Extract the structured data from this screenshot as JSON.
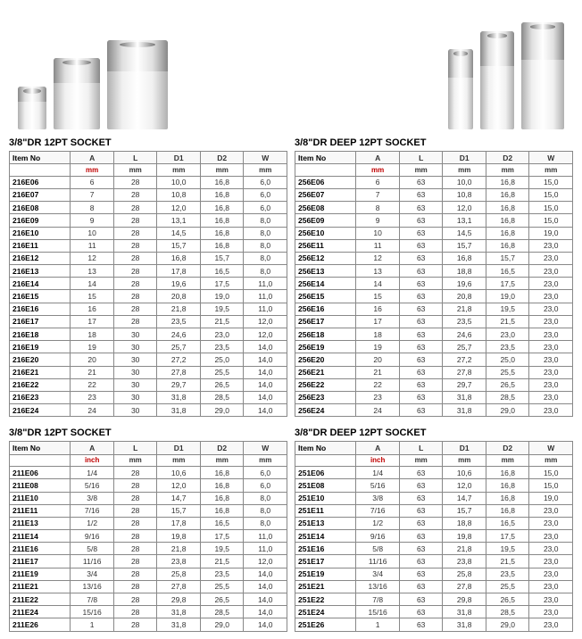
{
  "imageRow": {
    "leftGroup": [
      "s1",
      "s2",
      "s3"
    ],
    "rightGroup": [
      "d1",
      "d2",
      "d3"
    ]
  },
  "tables": [
    {
      "title": "3/8\"DR  12PT SOCKET",
      "headers": [
        "Item No",
        "A",
        "L",
        "D1",
        "D2",
        "W"
      ],
      "units": [
        "",
        "mm",
        "mm",
        "mm",
        "mm",
        "mm"
      ],
      "unitRedIndex": 1,
      "rows": [
        [
          "216E06",
          "6",
          "28",
          "10,0",
          "16,8",
          "6,0"
        ],
        [
          "216E07",
          "7",
          "28",
          "10,8",
          "16,8",
          "6,0"
        ],
        [
          "216E08",
          "8",
          "28",
          "12,0",
          "16,8",
          "6,0"
        ],
        [
          "216E09",
          "9",
          "28",
          "13,1",
          "16,8",
          "8,0"
        ],
        [
          "216E10",
          "10",
          "28",
          "14,5",
          "16,8",
          "8,0"
        ],
        [
          "216E11",
          "11",
          "28",
          "15,7",
          "16,8",
          "8,0"
        ],
        [
          "216E12",
          "12",
          "28",
          "16,8",
          "15,7",
          "8,0"
        ],
        [
          "216E13",
          "13",
          "28",
          "17,8",
          "16,5",
          "8,0"
        ],
        [
          "216E14",
          "14",
          "28",
          "19,6",
          "17,5",
          "11,0"
        ],
        [
          "216E15",
          "15",
          "28",
          "20,8",
          "19,0",
          "11,0"
        ],
        [
          "216E16",
          "16",
          "28",
          "21,8",
          "19,5",
          "11,0"
        ],
        [
          "216E17",
          "17",
          "28",
          "23,5",
          "21,5",
          "12,0"
        ],
        [
          "216E18",
          "18",
          "30",
          "24,6",
          "23,0",
          "12,0"
        ],
        [
          "216E19",
          "19",
          "30",
          "25,7",
          "23,5",
          "14,0"
        ],
        [
          "216E20",
          "20",
          "30",
          "27,2",
          "25,0",
          "14,0"
        ],
        [
          "216E21",
          "21",
          "30",
          "27,8",
          "25,5",
          "14,0"
        ],
        [
          "216E22",
          "22",
          "30",
          "29,7",
          "26,5",
          "14,0"
        ],
        [
          "216E23",
          "23",
          "30",
          "31,8",
          "28,5",
          "14,0"
        ],
        [
          "216E24",
          "24",
          "30",
          "31,8",
          "29,0",
          "14,0"
        ]
      ]
    },
    {
      "title": "3/8\"DR DEEP 12PT SOCKET",
      "headers": [
        "Item No",
        "A",
        "L",
        "D1",
        "D2",
        "W"
      ],
      "units": [
        "",
        "mm",
        "mm",
        "mm",
        "mm",
        "mm"
      ],
      "unitRedIndex": 1,
      "rows": [
        [
          "256E06",
          "6",
          "63",
          "10,0",
          "16,8",
          "15,0"
        ],
        [
          "256E07",
          "7",
          "63",
          "10,8",
          "16,8",
          "15,0"
        ],
        [
          "256E08",
          "8",
          "63",
          "12,0",
          "16,8",
          "15,0"
        ],
        [
          "256E09",
          "9",
          "63",
          "13,1",
          "16,8",
          "15,0"
        ],
        [
          "256E10",
          "10",
          "63",
          "14,5",
          "16,8",
          "19,0"
        ],
        [
          "256E11",
          "11",
          "63",
          "15,7",
          "16,8",
          "23,0"
        ],
        [
          "256E12",
          "12",
          "63",
          "16,8",
          "15,7",
          "23,0"
        ],
        [
          "256E13",
          "13",
          "63",
          "18,8",
          "16,5",
          "23,0"
        ],
        [
          "256E14",
          "14",
          "63",
          "19,6",
          "17,5",
          "23,0"
        ],
        [
          "256E15",
          "15",
          "63",
          "20,8",
          "19,0",
          "23,0"
        ],
        [
          "256E16",
          "16",
          "63",
          "21,8",
          "19,5",
          "23,0"
        ],
        [
          "256E17",
          "17",
          "63",
          "23,5",
          "21,5",
          "23,0"
        ],
        [
          "256E18",
          "18",
          "63",
          "24,6",
          "23,0",
          "23,0"
        ],
        [
          "256E19",
          "19",
          "63",
          "25,7",
          "23,5",
          "23,0"
        ],
        [
          "256E20",
          "20",
          "63",
          "27,2",
          "25,0",
          "23,0"
        ],
        [
          "256E21",
          "21",
          "63",
          "27,8",
          "25,5",
          "23,0"
        ],
        [
          "256E22",
          "22",
          "63",
          "29,7",
          "26,5",
          "23,0"
        ],
        [
          "256E23",
          "23",
          "63",
          "31,8",
          "28,5",
          "23,0"
        ],
        [
          "256E24",
          "24",
          "63",
          "31,8",
          "29,0",
          "23,0"
        ]
      ]
    },
    {
      "title": "3/8\"DR 12PT SOCKET",
      "headers": [
        "Item No",
        "A",
        "L",
        "D1",
        "D2",
        "W"
      ],
      "units": [
        "",
        "inch",
        "mm",
        "mm",
        "mm",
        "mm"
      ],
      "unitRedIndex": 1,
      "rows": [
        [
          "211E06",
          "1/4",
          "28",
          "10,6",
          "16,8",
          "6,0"
        ],
        [
          "211E08",
          "5/16",
          "28",
          "12,0",
          "16,8",
          "6,0"
        ],
        [
          "211E10",
          "3/8",
          "28",
          "14,7",
          "16,8",
          "8,0"
        ],
        [
          "211E11",
          "7/16",
          "28",
          "15,7",
          "16,8",
          "8,0"
        ],
        [
          "211E13",
          "1/2",
          "28",
          "17,8",
          "16,5",
          "8,0"
        ],
        [
          "211E14",
          "9/16",
          "28",
          "19,8",
          "17,5",
          "11,0"
        ],
        [
          "211E16",
          "5/8",
          "28",
          "21,8",
          "19,5",
          "11,0"
        ],
        [
          "211E17",
          "11/16",
          "28",
          "23,8",
          "21,5",
          "12,0"
        ],
        [
          "211E19",
          "3/4",
          "28",
          "25,8",
          "23,5",
          "14,0"
        ],
        [
          "211E21",
          "13/16",
          "28",
          "27,8",
          "25,5",
          "14,0"
        ],
        [
          "211E22",
          "7/8",
          "28",
          "29,8",
          "26,5",
          "14,0"
        ],
        [
          "211E24",
          "15/16",
          "28",
          "31,8",
          "28,5",
          "14,0"
        ],
        [
          "211E26",
          "1",
          "28",
          "31,8",
          "29,0",
          "14,0"
        ]
      ]
    },
    {
      "title": "3/8\"DR DEEP 12PT SOCKET",
      "headers": [
        "Item No",
        "A",
        "L",
        "D1",
        "D2",
        "W"
      ],
      "units": [
        "",
        "inch",
        "mm",
        "mm",
        "mm",
        "mm"
      ],
      "unitRedIndex": 1,
      "rows": [
        [
          "251E06",
          "1/4",
          "63",
          "10,6",
          "16,8",
          "15,0"
        ],
        [
          "251E08",
          "5/16",
          "63",
          "12,0",
          "16,8",
          "15,0"
        ],
        [
          "251E10",
          "3/8",
          "63",
          "14,7",
          "16,8",
          "19,0"
        ],
        [
          "251E11",
          "7/16",
          "63",
          "15,7",
          "16,8",
          "23,0"
        ],
        [
          "251E13",
          "1/2",
          "63",
          "18,8",
          "16,5",
          "23,0"
        ],
        [
          "251E14",
          "9/16",
          "63",
          "19,8",
          "17,5",
          "23,0"
        ],
        [
          "251E16",
          "5/8",
          "63",
          "21,8",
          "19,5",
          "23,0"
        ],
        [
          "251E17",
          "11/16",
          "63",
          "23,8",
          "21,5",
          "23,0"
        ],
        [
          "251E19",
          "3/4",
          "63",
          "25,8",
          "23,5",
          "23,0"
        ],
        [
          "251E21",
          "13/16",
          "63",
          "27,8",
          "25,5",
          "23,0"
        ],
        [
          "251E22",
          "7/8",
          "63",
          "29,8",
          "26,5",
          "23,0"
        ],
        [
          "251E24",
          "15/16",
          "63",
          "31,8",
          "28,5",
          "23,0"
        ],
        [
          "251E26",
          "1",
          "63",
          "31,8",
          "29,0",
          "23,0"
        ]
      ]
    }
  ]
}
